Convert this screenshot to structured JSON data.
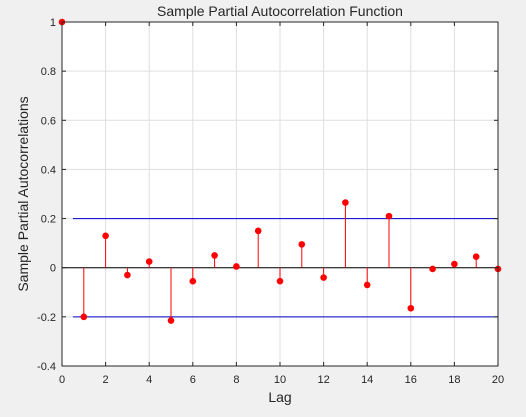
{
  "chart_data": {
    "type": "stem",
    "title": "Sample Partial Autocorrelation Function",
    "xlabel": "Lag",
    "ylabel": "Sample Partial Autocorrelations",
    "xlim": [
      0,
      20
    ],
    "ylim": [
      -0.4,
      1
    ],
    "xticks": [
      0,
      2,
      4,
      6,
      8,
      10,
      12,
      14,
      16,
      18,
      20
    ],
    "yticks": [
      -0.4,
      -0.2,
      0,
      0.2,
      0.4,
      0.6,
      0.8,
      1
    ],
    "xtick_labels": [
      "0",
      "2",
      "4",
      "6",
      "8",
      "10",
      "12",
      "14",
      "16",
      "18",
      "20"
    ],
    "ytick_labels": [
      "-0.4",
      "-0.2",
      "0",
      "0.2",
      "0.4",
      "0.6",
      "0.8",
      "1"
    ],
    "grid": true,
    "series": [
      {
        "x": [
          0,
          1,
          2,
          3,
          4,
          5,
          6,
          7,
          8,
          9,
          10,
          11,
          12,
          13,
          14,
          15,
          16,
          17,
          18,
          19,
          20
        ],
        "values": [
          1.0,
          -0.2,
          0.13,
          -0.03,
          0.025,
          -0.215,
          -0.055,
          0.05,
          0.005,
          0.15,
          -0.055,
          0.095,
          -0.04,
          0.265,
          -0.07,
          0.21,
          -0.165,
          -0.005,
          0.015,
          0.045,
          -0.005
        ],
        "color": "#ff0000"
      }
    ],
    "confidence_bounds": {
      "upper": 0.2,
      "lower": -0.2,
      "x_start": 0.5,
      "x_end": 20,
      "color": "#0000cc"
    },
    "colors": {
      "background": "#f0f0f0",
      "plot_area": "#ffffff",
      "grid": "#dfdfdf",
      "axis": "#262626",
      "zero_line": "#000000"
    }
  }
}
